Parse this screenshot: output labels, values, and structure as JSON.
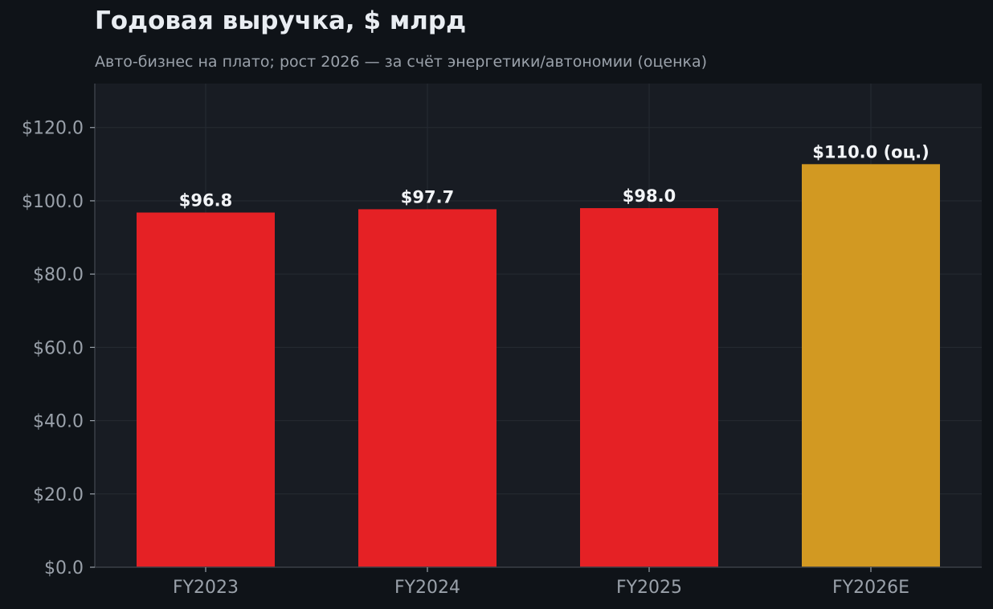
{
  "chart_data": {
    "type": "bar",
    "title": "Годовая выручка, $ млрд",
    "subtitle": "Авто-бизнес на плато; рост 2026 — за счёт энергетики/автономии (оценка)",
    "xlabel": "",
    "ylabel": "",
    "categories": [
      "FY2023",
      "FY2024",
      "FY2025",
      "FY2026E"
    ],
    "values": [
      96.8,
      97.7,
      98.0,
      110.0
    ],
    "value_labels": [
      "$96.8",
      "$97.7",
      "$98.0",
      "$110.0 (оц.)"
    ],
    "estimate_flags": [
      false,
      false,
      false,
      true
    ],
    "ylim": [
      0,
      132
    ],
    "yticks": [
      0,
      20,
      40,
      60,
      80,
      100,
      120
    ],
    "ytick_labels": [
      "$0.0",
      "$20.0",
      "$40.0",
      "$60.0",
      "$80.0",
      "$100.0",
      "$120.0"
    ],
    "grid": true,
    "legend": "none",
    "colors": {
      "actual": "#e52125",
      "estimate": "#d29922",
      "background": "#0f1318",
      "plot_background": "#181c23",
      "grid": "#262b33",
      "axis": "#3a3f47",
      "tick_text": "#9aa1aa",
      "label_text": "#f2f4f7",
      "title_text": "#e9edf2"
    }
  }
}
